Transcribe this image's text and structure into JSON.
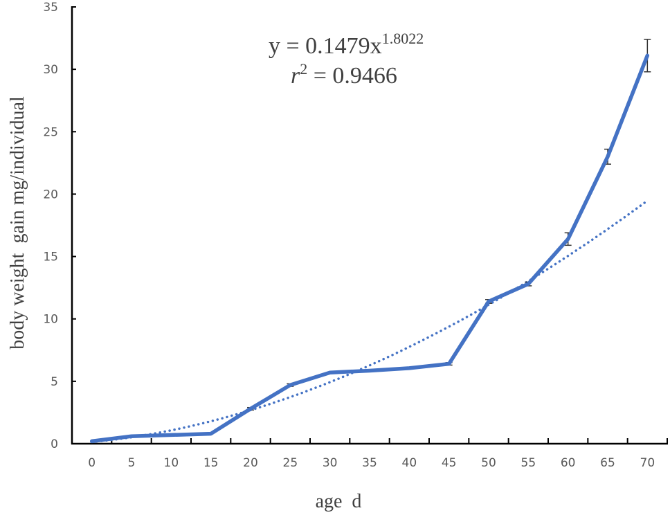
{
  "chart_data": {
    "type": "line",
    "title": "",
    "xlabel": "age  d",
    "ylabel": "body weight  gain mg/individual",
    "categories": [
      "0",
      "5",
      "10",
      "15",
      "20",
      "25",
      "30",
      "35",
      "40",
      "45",
      "50",
      "55",
      "60",
      "65",
      "70"
    ],
    "x": [
      0,
      5,
      10,
      15,
      20,
      25,
      30,
      35,
      40,
      45,
      50,
      55,
      60,
      65,
      70
    ],
    "series": [
      {
        "name": "body weight gain",
        "style": "solid",
        "color": "#4472C4",
        "values": [
          0.2,
          0.6,
          0.7,
          0.8,
          2.8,
          4.7,
          5.7,
          5.85,
          6.05,
          6.4,
          11.4,
          12.8,
          16.4,
          23.0,
          31.1
        ],
        "error_bars": [
          0,
          0,
          0,
          0,
          0.1,
          0.1,
          0,
          0,
          0,
          0.1,
          0.15,
          0.15,
          0.5,
          0.6,
          1.3
        ]
      },
      {
        "name": "Power trendline",
        "style": "dotted",
        "color": "#4472C4",
        "equation": "y = 0.1479x^1.8022",
        "r_squared": 0.9466
      }
    ],
    "yticks": [
      0,
      5,
      10,
      15,
      20,
      25,
      30,
      35
    ],
    "ylim": [
      0,
      35
    ],
    "grid": false,
    "legend": "none",
    "annotations": [
      {
        "text": "y = 0.1479x",
        "sup": "1.8022"
      },
      {
        "text_italic": "r",
        "sup": "2",
        "text": " = 0.9466"
      }
    ]
  },
  "labels": {
    "xlabel": "age  d",
    "ylabel": "body weight  gain mg/individual",
    "eq_main": "y = 0.1479x",
    "eq_exp": "1.8022",
    "r_var": "r",
    "r_sup": "2",
    "r_val": " = 0.9466"
  },
  "colors": {
    "series": "#4472C4",
    "axis": "#000000",
    "tick_text": "#595959",
    "title_text": "#404040",
    "error_bar": "#333333"
  }
}
